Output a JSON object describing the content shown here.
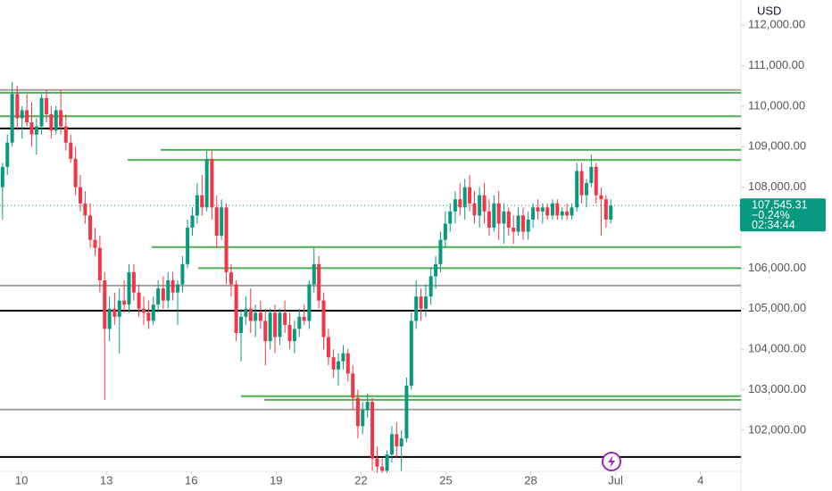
{
  "chart_data": {
    "type": "candlestick",
    "currency": "USD",
    "up_color": "#089981",
    "down_color": "#f23645",
    "xlim": [
      9.24,
      35.43
    ],
    "xticks": [
      10,
      13,
      16,
      19,
      22,
      25,
      28,
      {
        "value": 31,
        "label": "Jul"
      },
      {
        "value": 34,
        "label": "4"
      }
    ],
    "ylim": [
      100940,
      112620
    ],
    "yticks": [
      {
        "value": 112000,
        "label": "112,000.00"
      },
      {
        "value": 111000,
        "label": "111,000.00"
      },
      {
        "value": 110000,
        "label": "110,000.00"
      },
      {
        "value": 109000,
        "label": "109,000.00"
      },
      {
        "value": 108000,
        "label": "108,000.00"
      },
      {
        "value": 106000,
        "label": "106,000.00"
      },
      {
        "value": 105000,
        "label": "105,000.00"
      },
      {
        "value": 104000,
        "label": "104,000.00"
      },
      {
        "value": 103000,
        "label": "103,000.00"
      },
      {
        "value": 102000,
        "label": "102,000.00"
      }
    ],
    "x": [
      9.33,
      9.5,
      9.67,
      9.85,
      10.02,
      10.19,
      10.36,
      10.53,
      10.71,
      10.88,
      11.05,
      11.22,
      11.39,
      11.57,
      11.74,
      11.91,
      12.08,
      12.25,
      12.43,
      12.6,
      12.77,
      12.94,
      13.11,
      13.29,
      13.46,
      13.63,
      13.8,
      13.97,
      14.15,
      14.32,
      14.49,
      14.66,
      14.83,
      15.01,
      15.18,
      15.35,
      15.52,
      15.69,
      15.87,
      16.04,
      16.21,
      16.38,
      16.55,
      16.73,
      16.9,
      17.07,
      17.24,
      17.41,
      17.59,
      17.76,
      17.93,
      18.1,
      18.27,
      18.45,
      18.62,
      18.79,
      18.96,
      19.13,
      19.31,
      19.48,
      19.65,
      19.82,
      19.99,
      20.17,
      20.34,
      20.51,
      20.68,
      20.85,
      21.03,
      21.2,
      21.37,
      21.54,
      21.71,
      21.89,
      22.06,
      22.23,
      22.4,
      22.57,
      22.75,
      22.92,
      23.09,
      23.26,
      23.43,
      23.61,
      23.78,
      23.95,
      24.12,
      24.29,
      24.47,
      24.64,
      24.81,
      24.98,
      25.15,
      25.33,
      25.5,
      25.67,
      25.84,
      26.01,
      26.19,
      26.36,
      26.53,
      26.7,
      26.87,
      27.05,
      27.22,
      27.39,
      27.56,
      27.73,
      27.91,
      28.08,
      28.25,
      28.42,
      28.59,
      28.77,
      28.94,
      29.11,
      29.28,
      29.45,
      29.63,
      29.8,
      29.97,
      30.14,
      30.31,
      30.49,
      30.66,
      30.83
    ],
    "open": [
      108000,
      108500,
      109100,
      110300,
      109700,
      109900,
      109600,
      109300,
      109500,
      110200,
      109800,
      109400,
      109900,
      109500,
      109100,
      108700,
      108000,
      107600,
      107300,
      106700,
      106500,
      105700,
      104500,
      105000,
      104800,
      105200,
      105100,
      105900,
      105400,
      105000,
      104900,
      104700,
      105100,
      105500,
      105200,
      105700,
      105400,
      105600,
      106100,
      107000,
      107300,
      107800,
      107500,
      108700,
      107500,
      106800,
      107500,
      105900,
      105600,
      104400,
      104800,
      105000,
      104700,
      104900,
      104700,
      104200,
      104900,
      104300,
      104900,
      104600,
      104200,
      104500,
      104800,
      104700,
      105600,
      106100,
      105200,
      104300,
      103800,
      103500,
      103700,
      103900,
      103400,
      102800,
      102100,
      102500,
      102700,
      101300,
      101100,
      101000,
      101400,
      101900,
      101600,
      101800,
      103100,
      104700,
      105300,
      105000,
      105300,
      105800,
      106100,
      106700,
      107100,
      107400,
      107700,
      107500,
      108000,
      107600,
      107300,
      107800,
      107400,
      107000,
      107600,
      107100,
      107400,
      107000,
      106900,
      107300,
      106900,
      107200,
      107500,
      107400,
      107500,
      107300,
      107600,
      107300,
      107400,
      107300,
      107500,
      108400,
      107800,
      108100,
      108500,
      107800,
      107700,
      107200
    ],
    "high": [
      108600,
      109300,
      110600,
      110500,
      110000,
      110300,
      110100,
      109700,
      110300,
      110400,
      110000,
      110000,
      110400,
      109800,
      109300,
      109000,
      108300,
      107900,
      107600,
      107000,
      106800,
      105900,
      105300,
      105400,
      105500,
      105700,
      106100,
      106100,
      105600,
      105300,
      105200,
      105300,
      105700,
      105800,
      105900,
      105900,
      105700,
      106300,
      107200,
      107500,
      108100,
      108300,
      108900,
      108900,
      107800,
      107700,
      107600,
      106100,
      105700,
      105000,
      105300,
      105500,
      105100,
      105200,
      105000,
      105000,
      105100,
      105000,
      105200,
      104900,
      104700,
      105000,
      105100,
      105700,
      106500,
      106300,
      105400,
      104500,
      104000,
      103900,
      104100,
      104000,
      103600,
      103000,
      102700,
      102900,
      102800,
      101600,
      101300,
      101500,
      102100,
      102200,
      102000,
      103300,
      104900,
      105700,
      105500,
      105600,
      106000,
      106300,
      106900,
      107400,
      107600,
      107900,
      108100,
      108200,
      108300,
      107900,
      108000,
      108100,
      107700,
      107800,
      107900,
      107600,
      107500,
      107300,
      107500,
      107500,
      107400,
      107600,
      107700,
      107600,
      107600,
      107700,
      107700,
      107500,
      107600,
      107600,
      108600,
      108600,
      108200,
      108800,
      108600,
      108000,
      107800,
      107700
    ],
    "low": [
      107200,
      108300,
      109000,
      109400,
      109200,
      109500,
      109000,
      108800,
      109300,
      109600,
      109200,
      109300,
      109300,
      108900,
      108600,
      107800,
      107400,
      107100,
      106500,
      106300,
      105400,
      102750,
      104200,
      104600,
      103900,
      104900,
      104900,
      105200,
      104800,
      104600,
      104500,
      104600,
      104900,
      105000,
      105000,
      105200,
      104600,
      105400,
      106000,
      106800,
      107100,
      107300,
      107400,
      107200,
      106500,
      106700,
      105600,
      105300,
      104200,
      103700,
      104600,
      104400,
      104300,
      104500,
      103600,
      104000,
      103900,
      104100,
      104400,
      104000,
      103900,
      104300,
      104600,
      104500,
      105400,
      105000,
      104000,
      103600,
      103300,
      103100,
      103500,
      103200,
      102500,
      101800,
      101900,
      102300,
      101000,
      100950,
      100950,
      100950,
      101200,
      101300,
      101000,
      101700,
      103000,
      104500,
      104700,
      104800,
      105100,
      105500,
      105900,
      106500,
      106900,
      107100,
      107300,
      107200,
      107400,
      107100,
      107000,
      107100,
      106800,
      106900,
      106700,
      106600,
      106800,
      106600,
      106800,
      106700,
      106700,
      107000,
      107200,
      107100,
      107200,
      107200,
      107200,
      107200,
      107200,
      107200,
      107400,
      107600,
      107500,
      108000,
      107600,
      106800,
      107000,
      107100
    ],
    "close": [
      108500,
      109100,
      110300,
      109700,
      109900,
      109600,
      109300,
      109500,
      110200,
      109800,
      109400,
      109900,
      109500,
      109100,
      108700,
      108000,
      107600,
      107300,
      106700,
      106500,
      105700,
      104500,
      105000,
      104800,
      105200,
      105100,
      105900,
      105400,
      105000,
      104900,
      104700,
      105100,
      105500,
      105200,
      105700,
      105400,
      105600,
      106100,
      107000,
      107300,
      107800,
      107500,
      108700,
      107500,
      106800,
      107500,
      105900,
      105600,
      104400,
      104800,
      105000,
      104700,
      104900,
      104700,
      104200,
      104900,
      104300,
      104900,
      104600,
      104200,
      104500,
      104800,
      104700,
      105600,
      106100,
      105200,
      104300,
      103800,
      103500,
      103700,
      103900,
      103400,
      102800,
      102100,
      102500,
      102700,
      101300,
      101100,
      101000,
      101400,
      101900,
      101600,
      101800,
      103100,
      104700,
      105300,
      105000,
      105300,
      105800,
      106100,
      106700,
      107100,
      107400,
      107700,
      107500,
      108000,
      107600,
      107300,
      107800,
      107400,
      107000,
      107600,
      107100,
      107400,
      107000,
      106900,
      107300,
      106900,
      107200,
      107500,
      107400,
      107500,
      107300,
      107600,
      107300,
      107400,
      107300,
      107500,
      108400,
      107800,
      108100,
      108500,
      107800,
      107700,
      107200,
      107545.31
    ],
    "levels": [
      {
        "value": 110400,
        "color": "#a0a0a0"
      },
      {
        "value": 110330,
        "color": "#4caf50"
      },
      {
        "value": 109750,
        "color": "#4caf50"
      },
      {
        "value": 109450,
        "color": "#000000"
      },
      {
        "value": 108920,
        "color": "#4caf50",
        "from": 14.92
      },
      {
        "value": 108670,
        "color": "#4caf50",
        "from": 13.75
      },
      {
        "value": 106520,
        "color": "#4caf50",
        "from": 14.6
      },
      {
        "value": 106000,
        "color": "#4caf50",
        "from": 16.25
      },
      {
        "value": 105570,
        "color": "#a0a0a0"
      },
      {
        "value": 104950,
        "color": "#000000"
      },
      {
        "value": 102840,
        "color": "#4caf50",
        "from": 17.76
      },
      {
        "value": 102750,
        "color": "#4caf50",
        "from": 18.58
      },
      {
        "value": 102510,
        "color": "#a0a0a0"
      },
      {
        "value": 101340,
        "color": "#000000"
      }
    ],
    "last_price": {
      "value": 107545.31,
      "label": "107,545.31"
    },
    "change": "−0.24%",
    "countdown": "02:34:44"
  }
}
